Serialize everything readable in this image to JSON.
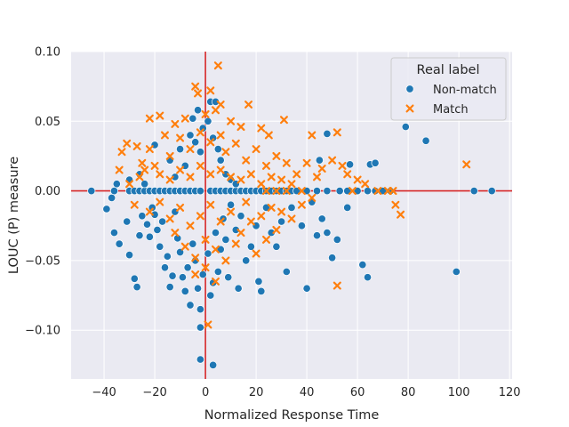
{
  "chart_data": {
    "type": "scatter",
    "title": "",
    "xlabel": "Normalized Response Time",
    "ylabel": "LOUC (P) measure",
    "xlim": [
      -53,
      121
    ],
    "ylim": [
      -0.135,
      0.1
    ],
    "xticks": [
      -40,
      -20,
      0,
      20,
      40,
      60,
      80,
      100,
      120
    ],
    "yticks": [
      -0.1,
      -0.05,
      0.0,
      0.05,
      0.1
    ],
    "xtick_labels": [
      "−40",
      "−20",
      "0",
      "20",
      "40",
      "60",
      "80",
      "100",
      "120"
    ],
    "ytick_labels": [
      "−0.10",
      "−0.05",
      "0.00",
      "0.05",
      "0.10"
    ],
    "reference_lines": {
      "x": 0,
      "y": 0,
      "color": "#d62728"
    },
    "grid": true,
    "legend": {
      "title": "Real label",
      "position": "top-right",
      "entries": [
        {
          "name": "Non-match",
          "marker": "circle",
          "color": "#1f77b4"
        },
        {
          "name": "Match",
          "marker": "x",
          "color": "#ff7f0e"
        }
      ]
    },
    "series": [
      {
        "name": "Non-match",
        "marker": "circle",
        "color": "#1f77b4",
        "points": [
          [
            -45,
            0
          ],
          [
            -36,
            0
          ],
          [
            -30,
            0
          ],
          [
            -28,
            0
          ],
          [
            -26,
            0
          ],
          [
            -24,
            0
          ],
          [
            -22,
            0
          ],
          [
            -20,
            0
          ],
          [
            -18,
            0
          ],
          [
            -16,
            0
          ],
          [
            -14,
            0
          ],
          [
            -12,
            0
          ],
          [
            -10,
            0
          ],
          [
            -8,
            0
          ],
          [
            -6,
            0
          ],
          [
            -4,
            0
          ],
          [
            -2,
            0
          ],
          [
            2,
            0
          ],
          [
            4,
            0
          ],
          [
            6,
            0
          ],
          [
            8,
            0
          ],
          [
            10,
            0
          ],
          [
            12,
            0
          ],
          [
            14,
            0
          ],
          [
            16,
            0
          ],
          [
            18,
            0
          ],
          [
            20,
            0
          ],
          [
            22,
            0
          ],
          [
            24,
            0
          ],
          [
            26,
            0
          ],
          [
            28,
            0
          ],
          [
            30,
            0
          ],
          [
            32,
            0
          ],
          [
            34,
            0
          ],
          [
            36,
            0
          ],
          [
            40,
            0
          ],
          [
            44,
            0
          ],
          [
            48,
            0
          ],
          [
            53,
            0
          ],
          [
            56,
            0
          ],
          [
            60,
            0
          ],
          [
            64,
            0
          ],
          [
            67,
            0
          ],
          [
            70,
            0
          ],
          [
            73,
            0
          ],
          [
            106,
            0
          ],
          [
            113,
            0
          ],
          [
            -39,
            -0.013
          ],
          [
            -37,
            -0.005
          ],
          [
            -36,
            -0.03
          ],
          [
            -34,
            -0.038
          ],
          [
            -31,
            -0.022
          ],
          [
            -30,
            -0.046
          ],
          [
            -28,
            -0.063
          ],
          [
            -27,
            -0.069
          ],
          [
            -26,
            -0.032
          ],
          [
            -25,
            -0.018
          ],
          [
            -23,
            -0.024
          ],
          [
            -22,
            -0.033
          ],
          [
            -21,
            -0.012
          ],
          [
            -20,
            -0.017
          ],
          [
            -19,
            -0.028
          ],
          [
            -18,
            -0.04
          ],
          [
            -17,
            -0.022
          ],
          [
            -16,
            -0.055
          ],
          [
            -15,
            -0.047
          ],
          [
            -14,
            -0.069
          ],
          [
            -13,
            -0.061
          ],
          [
            -12,
            -0.015
          ],
          [
            -11,
            -0.034
          ],
          [
            -10,
            -0.044
          ],
          [
            -9,
            -0.062
          ],
          [
            -8,
            -0.072
          ],
          [
            -7,
            -0.055
          ],
          [
            -6,
            -0.082
          ],
          [
            -5,
            -0.038
          ],
          [
            -4,
            -0.05
          ],
          [
            -3,
            -0.07
          ],
          [
            -2,
            -0.085
          ],
          [
            -1,
            -0.06
          ],
          [
            1,
            -0.045
          ],
          [
            2,
            -0.075
          ],
          [
            3,
            -0.066
          ],
          [
            4,
            -0.03
          ],
          [
            5,
            -0.058
          ],
          [
            6,
            -0.042
          ],
          [
            7,
            -0.02
          ],
          [
            8,
            -0.035
          ],
          [
            9,
            -0.062
          ],
          [
            10,
            -0.01
          ],
          [
            12,
            -0.028
          ],
          [
            13,
            -0.07
          ],
          [
            14,
            -0.018
          ],
          [
            16,
            -0.05
          ],
          [
            18,
            -0.04
          ],
          [
            20,
            -0.025
          ],
          [
            21,
            -0.065
          ],
          [
            22,
            -0.072
          ],
          [
            24,
            -0.012
          ],
          [
            26,
            -0.03
          ],
          [
            28,
            -0.04
          ],
          [
            30,
            -0.022
          ],
          [
            32,
            -0.058
          ],
          [
            34,
            -0.012
          ],
          [
            38,
            -0.025
          ],
          [
            40,
            -0.07
          ],
          [
            42,
            -0.008
          ],
          [
            44,
            -0.032
          ],
          [
            46,
            -0.02
          ],
          [
            48,
            -0.03
          ],
          [
            50,
            -0.048
          ],
          [
            52,
            -0.035
          ],
          [
            56,
            -0.012
          ],
          [
            62,
            -0.053
          ],
          [
            64,
            -0.062
          ],
          [
            99,
            -0.058
          ],
          [
            -2,
            -0.098
          ],
          [
            -2,
            -0.121
          ],
          [
            3,
            -0.125
          ],
          [
            -14,
            0.022
          ],
          [
            -12,
            0.01
          ],
          [
            -10,
            0.03
          ],
          [
            -8,
            0.018
          ],
          [
            -6,
            0.04
          ],
          [
            -5,
            0.052
          ],
          [
            -4,
            0.035
          ],
          [
            -3,
            0.058
          ],
          [
            -2,
            0.028
          ],
          [
            -1,
            0.045
          ],
          [
            1,
            0.05
          ],
          [
            2,
            0.064
          ],
          [
            3,
            0.038
          ],
          [
            4,
            0.064
          ],
          [
            5,
            0.03
          ],
          [
            6,
            0.022
          ],
          [
            8,
            0.012
          ],
          [
            10,
            0.008
          ],
          [
            12,
            0.005
          ],
          [
            -26,
            0.012
          ],
          [
            -24,
            0.005
          ],
          [
            -30,
            0.008
          ],
          [
            -35,
            0.005
          ],
          [
            -20,
            0.033
          ],
          [
            45,
            0.022
          ],
          [
            48,
            0.041
          ],
          [
            57,
            0.019
          ],
          [
            65,
            0.019
          ],
          [
            67,
            0.02
          ],
          [
            79,
            0.046
          ],
          [
            87,
            0.036
          ]
        ]
      },
      {
        "name": "Match",
        "marker": "x",
        "color": "#ff7f0e",
        "points": [
          [
            5,
            0.09
          ],
          [
            -4,
            0.075
          ],
          [
            2,
            0.072
          ],
          [
            -3,
            0.07
          ],
          [
            6,
            0.062
          ],
          [
            17,
            0.062
          ],
          [
            -18,
            0.054
          ],
          [
            -22,
            0.052
          ],
          [
            -12,
            0.048
          ],
          [
            -8,
            0.052
          ],
          [
            0,
            0.055
          ],
          [
            4,
            0.058
          ],
          [
            10,
            0.05
          ],
          [
            14,
            0.046
          ],
          [
            22,
            0.045
          ],
          [
            31,
            0.051
          ],
          [
            25,
            0.04
          ],
          [
            -31,
            0.034
          ],
          [
            -27,
            0.032
          ],
          [
            -25,
            0.02
          ],
          [
            -22,
            0.03
          ],
          [
            -20,
            0.018
          ],
          [
            -16,
            0.04
          ],
          [
            -14,
            0.025
          ],
          [
            -10,
            0.038
          ],
          [
            -6,
            0.03
          ],
          [
            -2,
            0.042
          ],
          [
            2,
            0.035
          ],
          [
            6,
            0.04
          ],
          [
            8,
            0.028
          ],
          [
            12,
            0.034
          ],
          [
            16,
            0.022
          ],
          [
            20,
            0.03
          ],
          [
            24,
            0.018
          ],
          [
            28,
            0.025
          ],
          [
            32,
            0.02
          ],
          [
            36,
            0.012
          ],
          [
            40,
            0.02
          ],
          [
            44,
            0.01
          ],
          [
            46,
            0.016
          ],
          [
            50,
            0.022
          ],
          [
            52,
            0.042
          ],
          [
            54,
            0.018
          ],
          [
            56,
            0.012
          ],
          [
            60,
            0.008
          ],
          [
            63,
            0.005
          ],
          [
            -30,
            0.005
          ],
          [
            -26,
            0.01
          ],
          [
            -24,
            0.015
          ],
          [
            -18,
            0.012
          ],
          [
            -14,
            0.008
          ],
          [
            -10,
            0.015
          ],
          [
            -6,
            0.01
          ],
          [
            -2,
            0.018
          ],
          [
            2,
            0.012
          ],
          [
            6,
            0.015
          ],
          [
            10,
            0.01
          ],
          [
            14,
            0.008
          ],
          [
            18,
            0.012
          ],
          [
            22,
            0.005
          ],
          [
            26,
            0.01
          ],
          [
            30,
            0.008
          ],
          [
            34,
            0.005
          ],
          [
            -28,
            -0.01
          ],
          [
            -22,
            -0.015
          ],
          [
            -18,
            -0.008
          ],
          [
            -14,
            -0.02
          ],
          [
            -10,
            -0.012
          ],
          [
            -6,
            -0.025
          ],
          [
            -2,
            -0.018
          ],
          [
            2,
            -0.01
          ],
          [
            6,
            -0.022
          ],
          [
            10,
            -0.015
          ],
          [
            14,
            -0.03
          ],
          [
            16,
            -0.008
          ],
          [
            18,
            -0.022
          ],
          [
            20,
            -0.045
          ],
          [
            22,
            -0.018
          ],
          [
            24,
            -0.035
          ],
          [
            26,
            -0.012
          ],
          [
            28,
            -0.028
          ],
          [
            30,
            -0.015
          ],
          [
            34,
            -0.02
          ],
          [
            38,
            -0.01
          ],
          [
            42,
            -0.005
          ],
          [
            -12,
            -0.03
          ],
          [
            -8,
            -0.04
          ],
          [
            -4,
            -0.048
          ],
          [
            0,
            -0.035
          ],
          [
            4,
            -0.042
          ],
          [
            8,
            -0.05
          ],
          [
            12,
            -0.038
          ],
          [
            -4,
            -0.06
          ],
          [
            0,
            -0.055
          ],
          [
            4,
            -0.065
          ],
          [
            1,
            -0.096
          ],
          [
            52,
            -0.068
          ],
          [
            75,
            -0.01
          ],
          [
            77,
            -0.017
          ],
          [
            103,
            0.019
          ],
          [
            74,
            0.0
          ],
          [
            42,
            0.04
          ],
          [
            38,
            0.0
          ],
          [
            58,
            0.0
          ],
          [
            68,
            0.0
          ],
          [
            72,
            0.0
          ],
          [
            24,
            0.0
          ],
          [
            28,
            0.0
          ],
          [
            32,
            0.0
          ],
          [
            -34,
            0.015
          ],
          [
            -33,
            0.028
          ]
        ]
      }
    ]
  }
}
